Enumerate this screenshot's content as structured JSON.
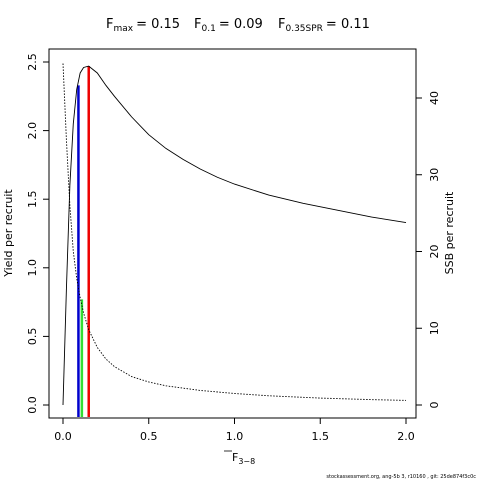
{
  "title": {
    "fmax_label": "max",
    "fmax_value": "= 0.15",
    "f01_label": "0.1",
    "f01_value": "= 0.09",
    "fspr_label": "0.35SPR",
    "fspr_value": "= 0.11",
    "f_letter": "F"
  },
  "footer": "stockassessment.org, ang-5b 3, r10160 , git: 25de874f3c0c",
  "chart_data": {
    "type": "line",
    "xlabel_main": "F",
    "xlabel_sub": "3−8",
    "ylabel_left": "Yield per recruit",
    "ylabel_right": "SSB per recruit",
    "xlim": [
      0,
      2
    ],
    "ylim_left": [
      0,
      2.5
    ],
    "ylim_right": [
      0,
      45
    ],
    "x_ticks": [
      0,
      0.5,
      1,
      1.5,
      2
    ],
    "x_tick_labels": [
      "0.0",
      "0.5",
      "1.0",
      "1.5",
      "2.0"
    ],
    "y_left_ticks": [
      0,
      0.5,
      1,
      1.5,
      2,
      2.5
    ],
    "y_left_tick_labels": [
      "0.0",
      "0.5",
      "1.0",
      "1.5",
      "2.0",
      "2.5"
    ],
    "y_right_ticks": [
      0,
      10,
      20,
      30,
      40
    ],
    "y_right_tick_labels": [
      "0",
      "10",
      "20",
      "30",
      "40"
    ],
    "series": [
      {
        "kind": "yield",
        "axis": "left",
        "style": "solid",
        "color": "#000000",
        "x": [
          0,
          0.02,
          0.04,
          0.06,
          0.08,
          0.1,
          0.12,
          0.15,
          0.2,
          0.25,
          0.3,
          0.4,
          0.5,
          0.6,
          0.7,
          0.8,
          0.9,
          1.0,
          1.2,
          1.4,
          1.6,
          1.8,
          2.0
        ],
        "y": [
          0,
          0.85,
          1.6,
          2.05,
          2.3,
          2.42,
          2.46,
          2.47,
          2.42,
          2.33,
          2.25,
          2.1,
          1.97,
          1.87,
          1.79,
          1.72,
          1.66,
          1.61,
          1.53,
          1.47,
          1.42,
          1.37,
          1.33
        ]
      },
      {
        "kind": "ssb",
        "axis": "right",
        "style": "dotted",
        "color": "#000000",
        "x": [
          0,
          0.02,
          0.04,
          0.06,
          0.08,
          0.1,
          0.12,
          0.15,
          0.2,
          0.25,
          0.3,
          0.4,
          0.5,
          0.6,
          0.8,
          1.0,
          1.2,
          1.5,
          1.8,
          2.0
        ],
        "y": [
          44.5,
          34.5,
          26,
          20,
          16.5,
          14,
          12,
          9.8,
          7.5,
          6.0,
          5.0,
          3.7,
          3.0,
          2.5,
          1.9,
          1.5,
          1.2,
          0.9,
          0.7,
          0.6
        ]
      }
    ],
    "reference_lines": [
      {
        "name": "F0.1",
        "x": 0.09,
        "y_top": 2.33,
        "color": "#0000cc"
      },
      {
        "name": "F0.35SPR",
        "x": 0.11,
        "y_top": 0.77,
        "color": "#33dd33"
      },
      {
        "name": "Fmax",
        "x": 0.15,
        "y_top": 2.47,
        "color": "#ee0000"
      }
    ]
  }
}
